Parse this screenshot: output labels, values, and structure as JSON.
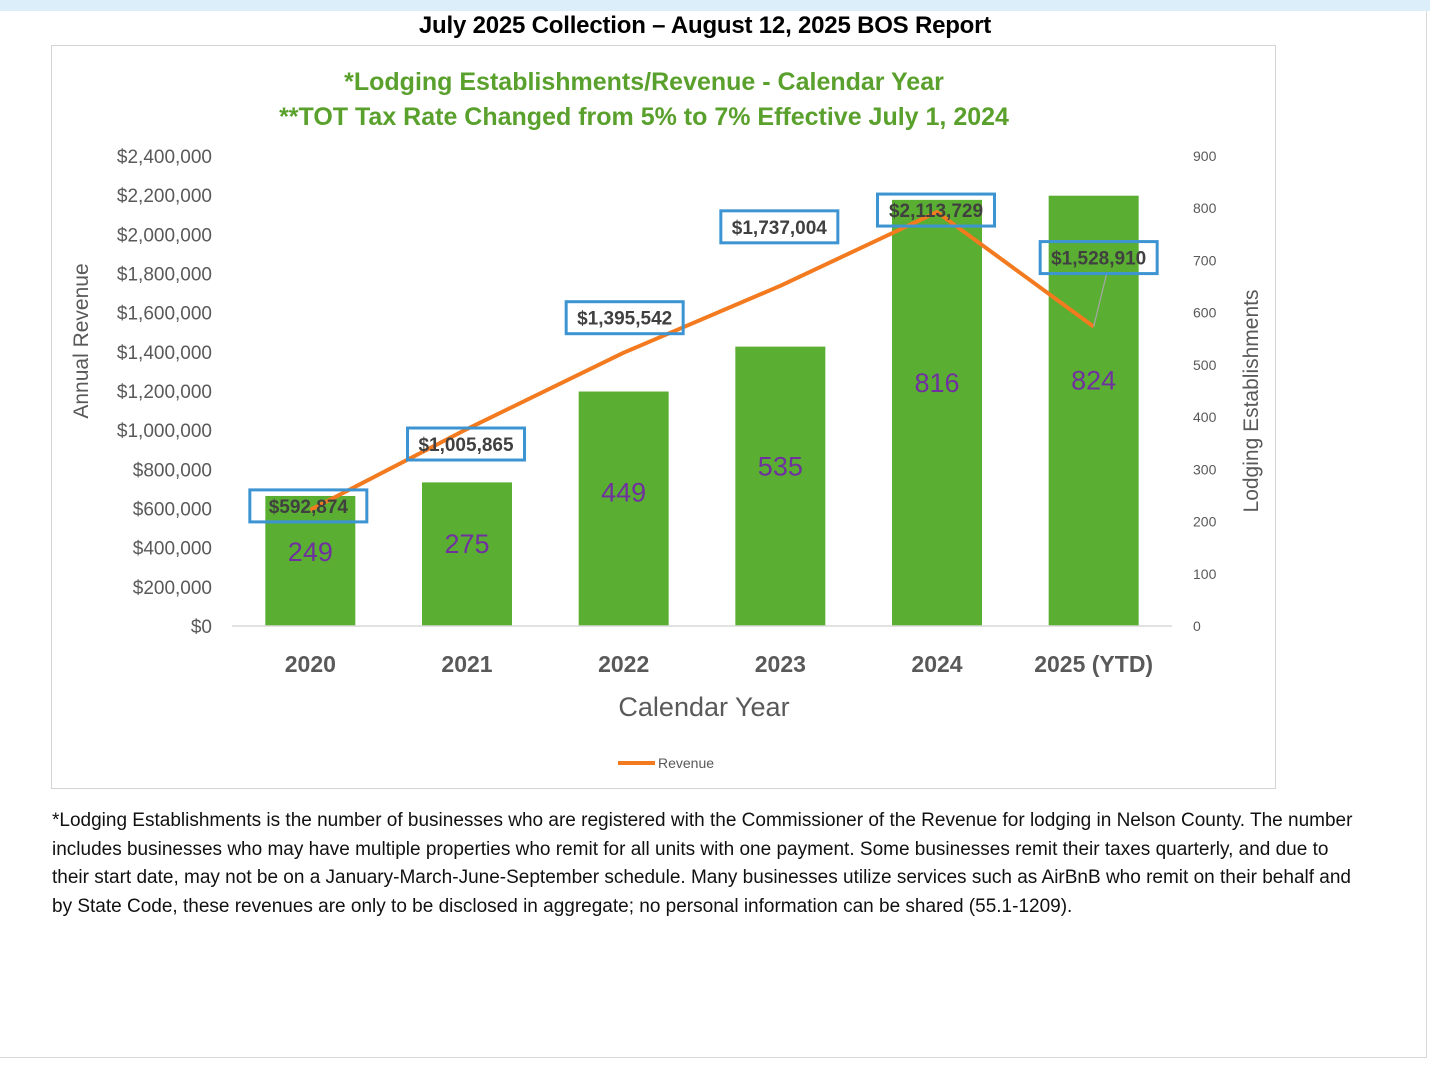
{
  "page": {
    "title": "July 2025 Collection – August 12, 2025 BOS Report",
    "footnote": "*Lodging Establishments is the number of businesses who are registered with the Commissioner of the Revenue for lodging in Nelson County. The number includes businesses who may have multiple properties who remit for all units with one payment. Some businesses remit their taxes quarterly, and due to their start date, may not be on a January-March-June-September schedule. Many businesses utilize services such as AirBnB who remit on their behalf and by State Code, these revenues are only to be disclosed in aggregate; no personal information can be shared (55.1-1209)."
  },
  "chart_data": {
    "type": "bar+line",
    "title": "*Lodging Establishments/Revenue - Calendar Year",
    "subtitle": "**TOT Tax Rate Changed from 5% to 7% Effective July 1, 2024",
    "xlabel": "Calendar Year",
    "ylabel_left": "Annual Revenue",
    "ylabel_right": "Lodging Establishments",
    "categories": [
      "2020",
      "2021",
      "2022",
      "2023",
      "2024",
      "2025 (YTD)"
    ],
    "bars": {
      "name": "Lodging Establishments",
      "axis": "right",
      "values": [
        249,
        275,
        449,
        535,
        816,
        824
      ],
      "labels": [
        "249",
        "275",
        "449",
        "535",
        "816",
        "824"
      ]
    },
    "line": {
      "name": "Revenue",
      "axis": "left",
      "values": [
        592874,
        1005865,
        1395542,
        1737004,
        2113729,
        1528910
      ],
      "labels": [
        "$592,874",
        "$1,005,865",
        "$1,395,542",
        "$1,737,004",
        "$2,113,729",
        "$1,528,910"
      ]
    },
    "y_left": {
      "min": 0,
      "max": 2400000,
      "step": 200000,
      "ticks": [
        "$0",
        "$200,000",
        "$400,000",
        "$600,000",
        "$800,000",
        "$1,000,000",
        "$1,200,000",
        "$1,400,000",
        "$1,600,000",
        "$1,800,000",
        "$2,000,000",
        "$2,200,000",
        "$2,400,000"
      ]
    },
    "y_right": {
      "min": 0,
      "max": 900,
      "step": 100,
      "ticks": [
        "0",
        "100",
        "200",
        "300",
        "400",
        "500",
        "600",
        "700",
        "800",
        "900"
      ]
    },
    "legend": {
      "position": "bottom",
      "entries": [
        "Revenue"
      ]
    },
    "grid": false,
    "colors": {
      "bar": "#5aaf32",
      "line": "#f37a1f",
      "bar_label": "#7030a0",
      "title": "#5aa02c",
      "label_box_border": "#3d94d2",
      "axis_text": "#595959"
    }
  }
}
